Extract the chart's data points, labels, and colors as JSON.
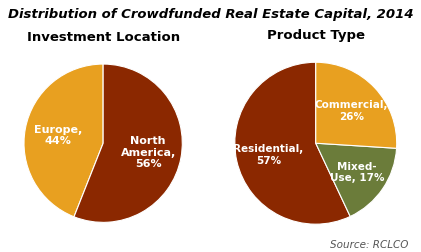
{
  "title": "Distribution of Crowdfunded Real Estate Capital, 2014",
  "left_title": "Investment Location",
  "right_title": "Product Type",
  "source": "Source: RCLCO",
  "pie1_labels": [
    "Europe,\n44%",
    "North\nAmerica,\n56%"
  ],
  "pie1_values": [
    44,
    56
  ],
  "pie1_colors": [
    "#E8A020",
    "#8B2800"
  ],
  "pie1_startangle": 90,
  "pie2_labels": [
    "Residential,\n57%",
    "Mixed-\nUse, 17%",
    "Commercial,\n26%"
  ],
  "pie2_values": [
    57,
    17,
    26
  ],
  "pie2_colors": [
    "#8B2800",
    "#6B7C3A",
    "#E8A020"
  ],
  "pie2_startangle": 90,
  "background_color": "#ffffff",
  "title_fontsize": 9.5,
  "subtitle_fontsize": 9.5,
  "label_fontsize": 8,
  "source_fontsize": 7.5
}
